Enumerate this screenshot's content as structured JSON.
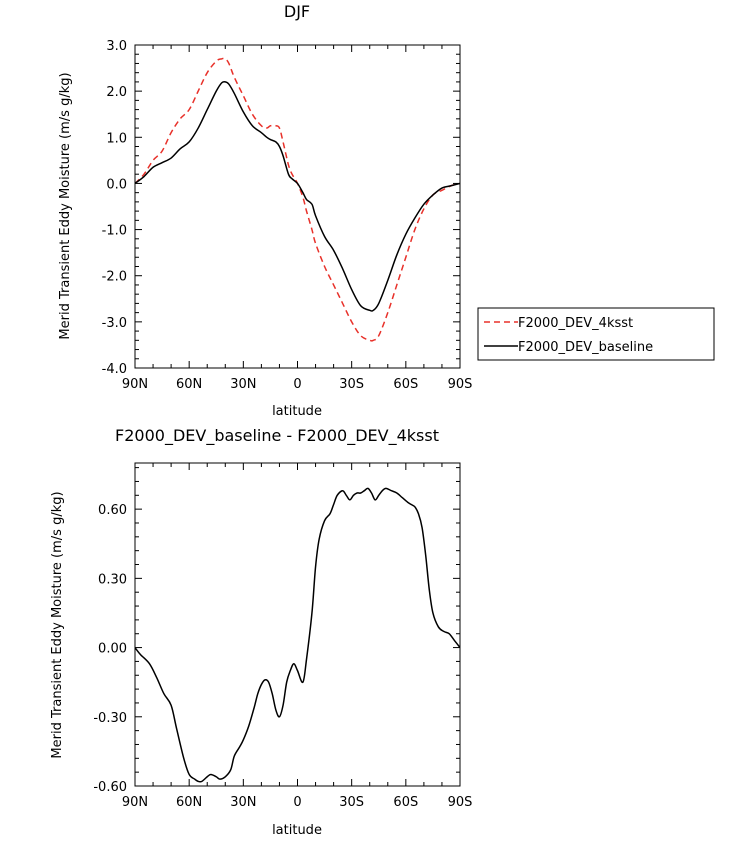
{
  "chart_data": [
    {
      "type": "line",
      "title": "DJF",
      "xlabel": "latitude",
      "ylabel": "Merid Transient Eddy Moisture (m/s g/kg)",
      "xlim": [
        90,
        -90
      ],
      "ylim": [
        -4.0,
        3.0
      ],
      "x_ticks": [
        90,
        60,
        30,
        0,
        -30,
        -60,
        -90
      ],
      "x_tick_labels": [
        "90N",
        "60N",
        "30N",
        "0",
        "30S",
        "60S",
        "90S"
      ],
      "y_ticks": [
        3.0,
        2.0,
        1.0,
        0.0,
        -1.0,
        -2.0,
        -3.0,
        -4.0
      ],
      "y_tick_labels": [
        "3.0",
        "2.0",
        "1.0",
        "0.0",
        "-1.0",
        "-2.0",
        "-3.0",
        "-4.0"
      ],
      "legend_position": "right",
      "series": [
        {
          "name": "F2000_DEV_4ksst",
          "color": "#e8312a",
          "dash": "dashed",
          "x": [
            90,
            85,
            80,
            75,
            70,
            65,
            60,
            55,
            50,
            45,
            42,
            40,
            38,
            35,
            30,
            25,
            20,
            17,
            15,
            12,
            10,
            8,
            5,
            3,
            0,
            -3,
            -5,
            -8,
            -10,
            -15,
            -20,
            -25,
            -30,
            -35,
            -40,
            -42,
            -45,
            -50,
            -55,
            -60,
            -65,
            -70,
            -75,
            -80,
            -85,
            -90
          ],
          "values": [
            0.0,
            0.2,
            0.5,
            0.7,
            1.1,
            1.4,
            1.6,
            2.0,
            2.4,
            2.65,
            2.7,
            2.7,
            2.6,
            2.3,
            1.9,
            1.5,
            1.25,
            1.2,
            1.25,
            1.25,
            1.2,
            0.9,
            0.4,
            0.2,
            0.0,
            -0.3,
            -0.6,
            -1.0,
            -1.3,
            -1.8,
            -2.2,
            -2.6,
            -3.0,
            -3.3,
            -3.4,
            -3.4,
            -3.3,
            -2.8,
            -2.2,
            -1.6,
            -1.0,
            -0.55,
            -0.25,
            -0.15,
            -0.05,
            0.0
          ]
        },
        {
          "name": "F2000_DEV_baseline",
          "color": "#000000",
          "dash": "solid",
          "x": [
            90,
            85,
            80,
            75,
            70,
            65,
            60,
            55,
            50,
            45,
            42,
            40,
            38,
            35,
            30,
            25,
            20,
            17,
            15,
            12,
            10,
            8,
            5,
            3,
            0,
            -3,
            -5,
            -8,
            -10,
            -15,
            -20,
            -25,
            -30,
            -35,
            -40,
            -42,
            -45,
            -50,
            -55,
            -60,
            -65,
            -70,
            -75,
            -80,
            -85,
            -90
          ],
          "values": [
            0.0,
            0.15,
            0.35,
            0.45,
            0.55,
            0.75,
            0.9,
            1.2,
            1.6,
            2.0,
            2.18,
            2.2,
            2.15,
            1.95,
            1.55,
            1.25,
            1.1,
            1.0,
            0.95,
            0.9,
            0.8,
            0.6,
            0.2,
            0.1,
            0.0,
            -0.2,
            -0.35,
            -0.45,
            -0.7,
            -1.15,
            -1.45,
            -1.85,
            -2.3,
            -2.65,
            -2.75,
            -2.75,
            -2.6,
            -2.1,
            -1.55,
            -1.1,
            -0.75,
            -0.45,
            -0.25,
            -0.1,
            -0.05,
            0.0
          ]
        }
      ]
    },
    {
      "type": "line",
      "title": "F2000_DEV_baseline - F2000_DEV_4ksst",
      "xlabel": "latitude",
      "ylabel": "Merid Transient Eddy Moisture (m/s g/kg)",
      "xlim": [
        90,
        -90
      ],
      "ylim": [
        -0.6,
        0.8
      ],
      "x_ticks": [
        90,
        60,
        30,
        0,
        -30,
        -60,
        -90
      ],
      "x_tick_labels": [
        "90N",
        "60N",
        "30N",
        "0",
        "30S",
        "60S",
        "90S"
      ],
      "y_ticks": [
        0.6,
        0.3,
        0.0,
        -0.3,
        -0.6
      ],
      "y_tick_labels": [
        "0.60",
        "0.30",
        "0.00",
        "-0.30",
        "-0.60"
      ],
      "series": [
        {
          "color": "#000000",
          "dash": "solid",
          "x": [
            90,
            87,
            82,
            78,
            74,
            70,
            67,
            63,
            60,
            57,
            55,
            53,
            50,
            48,
            45,
            43,
            40,
            37,
            35,
            32,
            30,
            27,
            24,
            22,
            20,
            18,
            16,
            14,
            12,
            10,
            8,
            6,
            4,
            2,
            0,
            -3,
            -5,
            -8,
            -10,
            -12,
            -15,
            -18,
            -20,
            -22,
            -25,
            -27,
            -29,
            -31,
            -33,
            -35,
            -37,
            -39,
            -41,
            -43,
            -45,
            -47,
            -49,
            -52,
            -55,
            -58,
            -61,
            -63,
            -65,
            -67,
            -69,
            -71,
            -73,
            -75,
            -78,
            -81,
            -84,
            -87,
            -90
          ],
          "values": [
            0.0,
            -0.03,
            -0.07,
            -0.13,
            -0.2,
            -0.25,
            -0.35,
            -0.48,
            -0.55,
            -0.57,
            -0.58,
            -0.58,
            -0.56,
            -0.55,
            -0.56,
            -0.57,
            -0.56,
            -0.53,
            -0.47,
            -0.43,
            -0.4,
            -0.34,
            -0.26,
            -0.2,
            -0.16,
            -0.14,
            -0.15,
            -0.2,
            -0.27,
            -0.3,
            -0.25,
            -0.15,
            -0.1,
            -0.07,
            -0.1,
            -0.15,
            -0.05,
            0.15,
            0.35,
            0.47,
            0.55,
            0.58,
            0.62,
            0.66,
            0.68,
            0.66,
            0.64,
            0.66,
            0.67,
            0.67,
            0.68,
            0.69,
            0.67,
            0.64,
            0.66,
            0.68,
            0.69,
            0.68,
            0.67,
            0.65,
            0.63,
            0.62,
            0.61,
            0.58,
            0.52,
            0.4,
            0.25,
            0.15,
            0.09,
            0.07,
            0.06,
            0.03,
            0.0
          ]
        }
      ]
    }
  ]
}
